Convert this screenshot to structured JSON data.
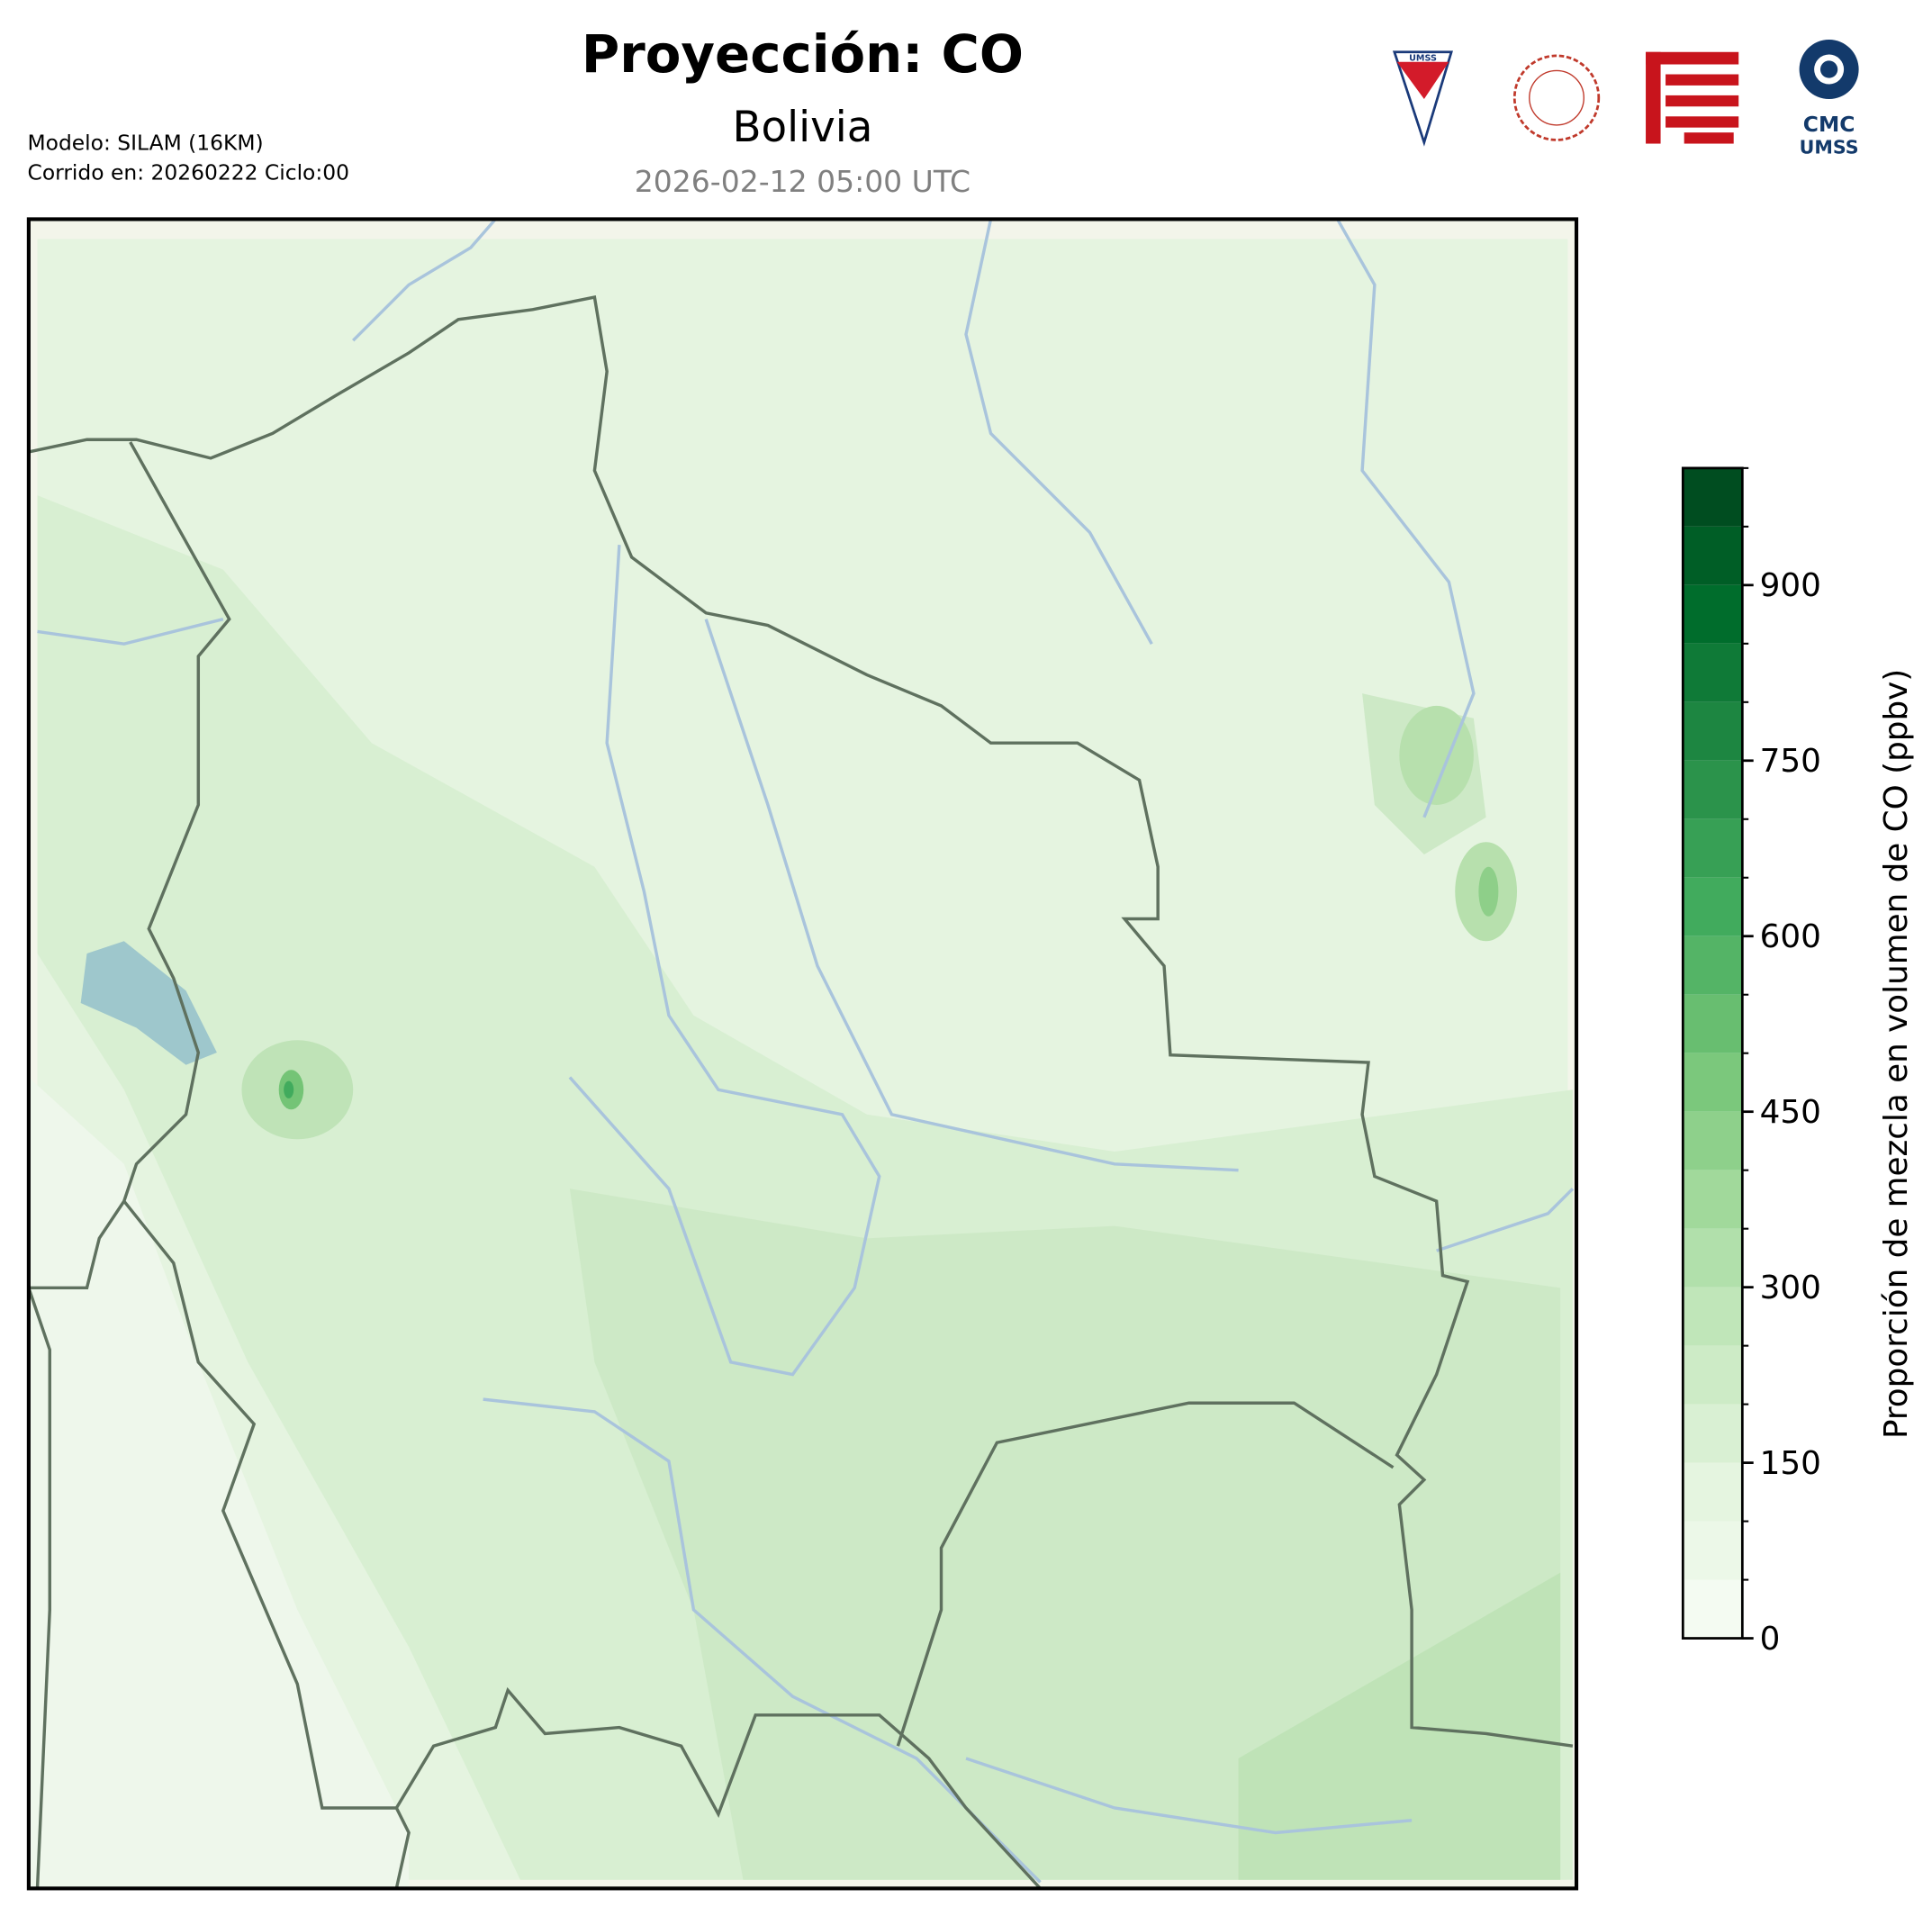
{
  "header": {
    "title": "Proyección: CO",
    "region": "Bolivia",
    "valid_time": "2026-02-12 05:00 UTC",
    "model": "Modelo: SILAM (16KM)",
    "run": "Corrido en: 20260222 Ciclo:00"
  },
  "logos": {
    "umss": "UMSS",
    "cmc_top": "CMC",
    "cmc_bottom": "UMSS"
  },
  "colorbar": {
    "label": "Proporción de mezcla en volumen de CO (ppbv)",
    "lim": [
      0,
      1000
    ],
    "ticks": [
      0,
      150,
      300,
      450,
      600,
      750,
      900
    ],
    "levels": [
      0,
      50,
      100,
      150,
      200,
      250,
      300,
      350,
      400,
      450,
      500,
      550,
      600,
      650,
      700,
      750,
      800,
      850,
      900,
      950,
      1000
    ],
    "colors": [
      "#f4fbf2",
      "#ecf8e8",
      "#e5f5e0",
      "#d9f0d3",
      "#cdebc6",
      "#c0e6b9",
      "#b1e0ab",
      "#a1d99b",
      "#8ed08b",
      "#7bc87c",
      "#68be70",
      "#54b466",
      "#41ab5d",
      "#37a055",
      "#2b934b",
      "#1d8641",
      "#0f7a37",
      "#006d2c",
      "#005e26",
      "#004d20"
    ]
  }
}
